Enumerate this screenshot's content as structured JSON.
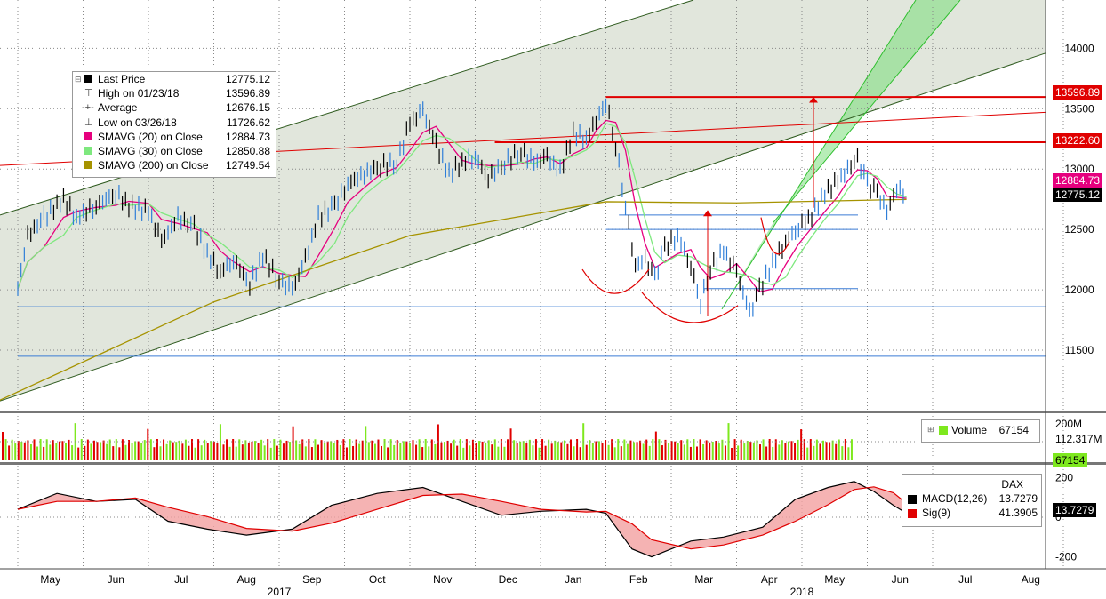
{
  "chart_data": {
    "type": "line",
    "instrument": "DAX",
    "price_axis": {
      "ylim": [
        11000,
        14400
      ],
      "ticks": [
        11500,
        12000,
        12500,
        13000,
        13500,
        14000
      ]
    },
    "volume_axis": {
      "ticks": [
        "200M",
        "112.317M"
      ]
    },
    "macd_axis": {
      "ylim": [
        -260,
        260
      ],
      "ticks": [
        200,
        0,
        -200
      ]
    },
    "x_labels": [
      {
        "label": "May",
        "m": 0.5
      },
      {
        "label": "Jun",
        "m": 1.5
      },
      {
        "label": "Jul",
        "m": 2.5
      },
      {
        "label": "Aug",
        "m": 3.5
      },
      {
        "label": "Sep",
        "m": 4.5
      },
      {
        "label": "Oct",
        "m": 5.5
      },
      {
        "label": "Nov",
        "m": 6.5
      },
      {
        "label": "Dec",
        "m": 7.5
      },
      {
        "label": "Jan",
        "m": 8.5
      },
      {
        "label": "Feb",
        "m": 9.5
      },
      {
        "label": "Mar",
        "m": 10.5
      },
      {
        "label": "Apr",
        "m": 11.5
      },
      {
        "label": "May",
        "m": 12.5
      },
      {
        "label": "Jun",
        "m": 13.5
      },
      {
        "label": "Jul",
        "m": 14.5
      },
      {
        "label": "Aug",
        "m": 15.5
      }
    ],
    "year_labels": [
      {
        "label": "2017",
        "m": 4.0
      },
      {
        "label": "2018",
        "m": 12.0
      }
    ],
    "price_path": [
      [
        0.0,
        12010
      ],
      [
        0.15,
        12450
      ],
      [
        0.4,
        12600
      ],
      [
        0.7,
        12750
      ],
      [
        0.9,
        12600
      ],
      [
        1.2,
        12700
      ],
      [
        1.5,
        12800
      ],
      [
        1.7,
        12700
      ],
      [
        2.0,
        12650
      ],
      [
        2.2,
        12400
      ],
      [
        2.45,
        12600
      ],
      [
        2.7,
        12520
      ],
      [
        2.9,
        12300
      ],
      [
        3.1,
        12150
      ],
      [
        3.3,
        12250
      ],
      [
        3.55,
        12050
      ],
      [
        3.75,
        12280
      ],
      [
        4.0,
        12080
      ],
      [
        4.2,
        12000
      ],
      [
        4.4,
        12250
      ],
      [
        4.6,
        12600
      ],
      [
        4.85,
        12700
      ],
      [
        5.05,
        12880
      ],
      [
        5.3,
        12960
      ],
      [
        5.55,
        13030
      ],
      [
        5.8,
        13050
      ],
      [
        6.0,
        13380
      ],
      [
        6.2,
        13480
      ],
      [
        6.4,
        13200
      ],
      [
        6.6,
        12960
      ],
      [
        6.8,
        13060
      ],
      [
        7.0,
        13100
      ],
      [
        7.2,
        12930
      ],
      [
        7.45,
        13050
      ],
      [
        7.7,
        13150
      ],
      [
        7.9,
        13050
      ],
      [
        8.1,
        13100
      ],
      [
        8.3,
        12980
      ],
      [
        8.5,
        13300
      ],
      [
        8.7,
        13250
      ],
      [
        8.85,
        13400
      ],
      [
        9.0,
        13560
      ],
      [
        9.15,
        13200
      ],
      [
        9.3,
        12700
      ],
      [
        9.45,
        12200
      ],
      [
        9.6,
        12250
      ],
      [
        9.75,
        12100
      ],
      [
        9.9,
        12350
      ],
      [
        10.1,
        12450
      ],
      [
        10.3,
        12200
      ],
      [
        10.45,
        11900
      ],
      [
        10.6,
        12180
      ],
      [
        10.8,
        12320
      ],
      [
        11.0,
        12150
      ],
      [
        11.2,
        11800
      ],
      [
        11.35,
        12000
      ],
      [
        11.55,
        12220
      ],
      [
        11.75,
        12400
      ],
      [
        11.95,
        12520
      ],
      [
        12.15,
        12620
      ],
      [
        12.35,
        12800
      ],
      [
        12.55,
        12900
      ],
      [
        12.7,
        13000
      ],
      [
        12.85,
        13080
      ],
      [
        13.0,
        12880
      ],
      [
        13.15,
        12800
      ],
      [
        13.3,
        12650
      ],
      [
        13.45,
        12850
      ],
      [
        13.6,
        12775
      ]
    ],
    "series": [
      {
        "name": "Last Price",
        "value": "12775.12"
      },
      {
        "name": "High on 01/23/18",
        "value": "13596.89"
      },
      {
        "name": "Average",
        "value": "12676.15"
      },
      {
        "name": "Low on 03/26/18",
        "value": "11726.62"
      },
      {
        "name": "SMAVG (20) on Close",
        "value": "12884.73"
      },
      {
        "name": "SMAVG (30) on Close",
        "value": "12850.88"
      },
      {
        "name": "SMAVG (200) on Close",
        "value": "12749.54"
      }
    ],
    "right_tags": [
      {
        "label": "13596.89",
        "value": 13596.89
      },
      {
        "label": "13222.60",
        "value": 13222.6
      },
      {
        "label": "12884.73",
        "value": 12884.73
      },
      {
        "label": "12775.12",
        "value": 12775.12
      }
    ],
    "horizontal_lines": [
      {
        "name": "high-line",
        "value": 13596.89,
        "color": "#e00000",
        "from_m": 9.0
      },
      {
        "name": "mid-red-line",
        "value": 13222.6,
        "color": "#e00000",
        "from_m": 7.3
      },
      {
        "name": "blue-line-1",
        "value": 12620,
        "color": "#3a7bd5",
        "from_m": 9.2
      },
      {
        "name": "blue-line-2",
        "value": 12500,
        "color": "#3a7bd5",
        "from_m": 9.0
      },
      {
        "name": "blue-line-3",
        "value": 12010,
        "color": "#3a7bd5",
        "from_m": 10.5
      },
      {
        "name": "blue-line-4",
        "value": 11860,
        "color": "#3a7bd5",
        "from_m": 0
      },
      {
        "name": "blue-line-5",
        "value": 11450,
        "color": "#3a7bd5",
        "from_m": 0
      }
    ],
    "volume": {
      "label": "Volume",
      "value": "67154",
      "last_tag": "67154"
    },
    "macd": {
      "instrument": "DAX",
      "macd_label": "MACD(12,26)",
      "macd_value": "13.7279",
      "sig_label": "Sig(9)",
      "sig_value": "41.3905",
      "tag": "13.7279",
      "path": [
        [
          0,
          40
        ],
        [
          0.6,
          120
        ],
        [
          1.2,
          80
        ],
        [
          1.8,
          90
        ],
        [
          2.3,
          -20
        ],
        [
          2.9,
          -60
        ],
        [
          3.5,
          -90
        ],
        [
          4.2,
          -60
        ],
        [
          4.8,
          60
        ],
        [
          5.5,
          120
        ],
        [
          6.2,
          150
        ],
        [
          6.8,
          80
        ],
        [
          7.4,
          10
        ],
        [
          8.0,
          30
        ],
        [
          8.7,
          40
        ],
        [
          9.0,
          20
        ],
        [
          9.4,
          -160
        ],
        [
          9.7,
          -200
        ],
        [
          10.3,
          -120
        ],
        [
          10.8,
          -100
        ],
        [
          11.4,
          -50
        ],
        [
          11.9,
          90
        ],
        [
          12.4,
          150
        ],
        [
          12.8,
          180
        ],
        [
          13.1,
          130
        ],
        [
          13.4,
          60
        ],
        [
          13.6,
          20
        ]
      ]
    },
    "colors": {
      "price_up": "#000000",
      "price_down": "#2f7ed8",
      "sma20": "#e6007e",
      "sma30": "#7ee87e",
      "sma200": "#a69300",
      "channel": "#2e5a1e",
      "fill_green": "#6fdc6f",
      "red": "#e00000"
    }
  }
}
